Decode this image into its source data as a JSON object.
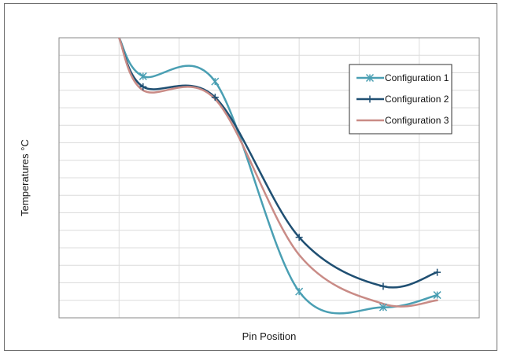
{
  "chart_data": {
    "type": "line",
    "title": "",
    "xlabel": "Pin Position",
    "ylabel": "Temperatures °C",
    "x_tick_labels": false,
    "y_tick_labels": false,
    "grid": true,
    "legend_position": "top-right",
    "xlim": [
      0,
      7
    ],
    "ylim": [
      0,
      16
    ],
    "series": [
      {
        "name": "Configuration 1",
        "color": "#4a9fb3",
        "marker": "asterisk",
        "points": [
          [
            1.0,
            16.0
          ],
          [
            1.4,
            13.8
          ],
          [
            2.6,
            13.5
          ],
          [
            4.0,
            1.5
          ],
          [
            5.4,
            0.6
          ],
          [
            6.3,
            1.3
          ]
        ],
        "marker_points": [
          [
            1.4,
            13.8
          ],
          [
            2.6,
            13.5
          ],
          [
            4.0,
            1.5
          ],
          [
            5.4,
            0.6
          ],
          [
            6.3,
            1.3
          ]
        ]
      },
      {
        "name": "Configuration 2",
        "color": "#1f4f72",
        "marker": "plus",
        "points": [
          [
            1.0,
            16.0
          ],
          [
            1.4,
            13.2
          ],
          [
            2.6,
            12.6
          ],
          [
            4.0,
            4.6
          ],
          [
            5.4,
            1.8
          ],
          [
            6.3,
            2.6
          ]
        ],
        "marker_points": [
          [
            1.4,
            13.2
          ],
          [
            2.6,
            12.6
          ],
          [
            4.0,
            4.6
          ],
          [
            5.4,
            1.8
          ],
          [
            6.3,
            2.6
          ]
        ]
      },
      {
        "name": "Configuration 3",
        "color": "#c98b86",
        "marker": "none",
        "points": [
          [
            1.0,
            16.0
          ],
          [
            1.4,
            13.0
          ],
          [
            2.6,
            12.5
          ],
          [
            4.0,
            3.6
          ],
          [
            5.4,
            0.8
          ],
          [
            6.3,
            1.0
          ]
        ],
        "marker_points": []
      }
    ]
  }
}
